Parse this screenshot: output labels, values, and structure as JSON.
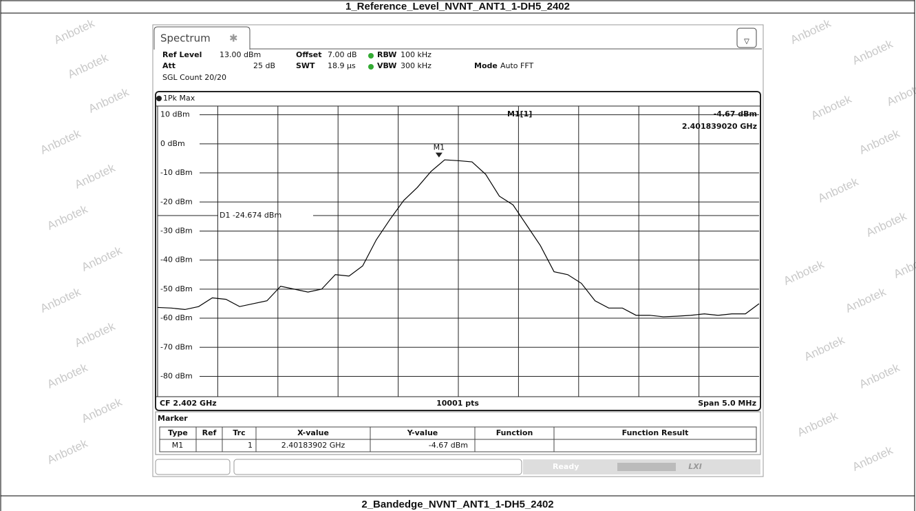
{
  "report_title": "1_Reference_Level_NVNT_ANT1_1-DH5_2402",
  "next_title": "2_Bandedge_NVNT_ANT1_1-DH5_2402",
  "watermark": "Anbotek",
  "tab": "Spectrum",
  "settings": {
    "ref_level_label": "Ref Level",
    "ref_level": "13.00 dBm",
    "offset_label": "Offset",
    "offset": "7.00 dB",
    "rbw_label": "RBW",
    "rbw": "100 kHz",
    "att_label": "Att",
    "att": "25 dB",
    "swt_label": "SWT",
    "swt": "18.9 µs",
    "vbw_label": "VBW",
    "vbw": "300 kHz",
    "mode_label": "Mode",
    "mode": "Auto FFT",
    "count": "SGL Count 20/20"
  },
  "chart_data": {
    "type": "line",
    "trace_label": "1Pk Max",
    "xlim": [
      2.3995,
      2.4045
    ],
    "ylim": [
      -87,
      13
    ],
    "yticks": [
      {
        "value": 10,
        "label": "10 dBm"
      },
      {
        "value": 0,
        "label": "0 dBm"
      },
      {
        "value": -10,
        "label": "-10 dBm"
      },
      {
        "value": -20,
        "label": "-20 dBm"
      },
      {
        "value": -30,
        "label": "-30 dBm"
      },
      {
        "value": -40,
        "label": "-40 dBm"
      },
      {
        "value": -50,
        "label": "-50 dBm"
      },
      {
        "value": -60,
        "label": "-60 dBm"
      },
      {
        "value": -70,
        "label": "-70 dBm"
      },
      {
        "value": -80,
        "label": "-80 dBm"
      }
    ],
    "color": "#000000",
    "values": [
      -56.3,
      -56.5,
      -57,
      -56,
      -53,
      -53.5,
      -56,
      -55,
      -54,
      -49,
      -50,
      -51,
      -50,
      -45,
      -45.5,
      -42,
      -33,
      -26,
      -19.5,
      -15,
      -9.5,
      -5.5,
      -5.8,
      -6.2,
      -10.5,
      -18,
      -21,
      -28,
      -35,
      -44,
      -45,
      -48,
      -54,
      -56.5,
      -56.5,
      -59,
      -59,
      -59.5,
      -59.3,
      -59,
      -58.5,
      -59,
      -58.5,
      -58.5,
      -55
    ],
    "d1": {
      "value": -24.674,
      "label": "D1 -24.674 dBm"
    },
    "marker": {
      "name": "M1",
      "readout": "M1[1]",
      "x": 2.40183902,
      "y": -4.67,
      "x_label": "2.401839020 GHz",
      "y_label": "-4.67 dBm"
    },
    "cf": "CF 2.402 GHz",
    "points": "10001 pts",
    "span": "Span 5.0 MHz"
  },
  "marker_table": {
    "title": "Marker",
    "headers": [
      "Type",
      "Ref",
      "Trc",
      "X-value",
      "Y-value",
      "Function",
      "Function Result"
    ],
    "row": {
      "type": "M1",
      "trc": "1",
      "x_value": "2.40183902 GHz",
      "y_value": "-4.67 dBm"
    }
  },
  "status": "Ready",
  "logo": "LXI"
}
